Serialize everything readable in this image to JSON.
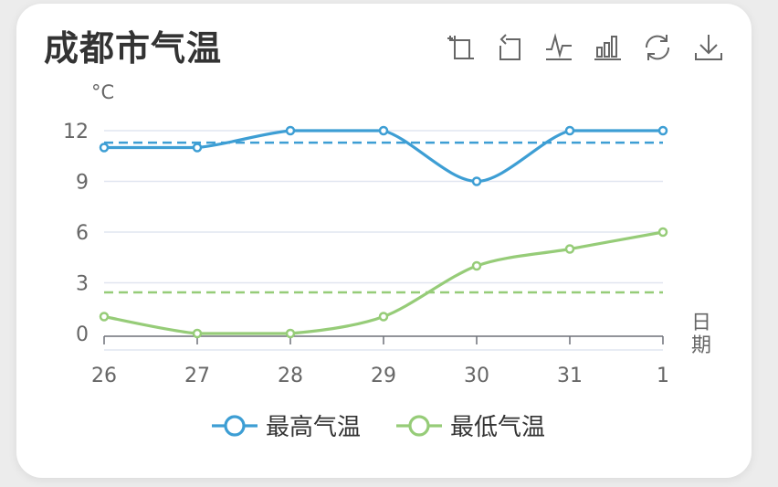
{
  "title": "成都市气温",
  "toolbar": {
    "icons": [
      "crop-icon",
      "undo-icon",
      "line-chart-icon",
      "bar-chart-icon",
      "refresh-icon",
      "download-icon"
    ]
  },
  "colors": {
    "high": "#3d9ed4",
    "low": "#96cc78",
    "grid": "#e1e5f0",
    "axis": "#6e7079",
    "text": "#555555"
  },
  "chart_data": {
    "type": "line",
    "categories": [
      "26",
      "27",
      "28",
      "29",
      "30",
      "31",
      "1"
    ],
    "series": [
      {
        "name": "最高气温",
        "values": [
          11,
          11,
          12,
          12,
          9,
          12,
          12
        ],
        "average": 11.29,
        "color": "#3d9ed4"
      },
      {
        "name": "最低气温",
        "values": [
          1,
          0,
          0,
          1,
          4,
          5,
          6
        ],
        "average": 2.43,
        "color": "#96cc78"
      }
    ],
    "yunit": "°C",
    "xlabel": "日期",
    "yticks": [
      0,
      3,
      6,
      9,
      12
    ],
    "ylim": [
      0,
      12
    ],
    "smooth": true,
    "grid": true,
    "legend_position": "bottom-center"
  }
}
